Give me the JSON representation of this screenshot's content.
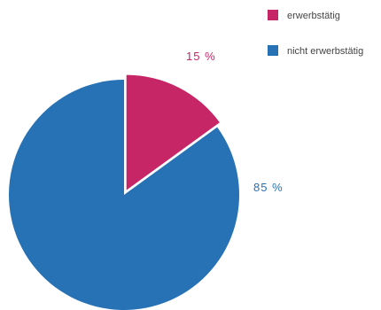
{
  "chart_data": {
    "type": "pie",
    "series": [
      {
        "name": "erwerbstätig",
        "value": 15,
        "label": "15 %",
        "color": "#c62566"
      },
      {
        "name": "nicht erwerbstätig",
        "value": 85,
        "label": "85 %",
        "color": "#2772b5"
      }
    ],
    "legend_position": "top-right",
    "exploded_slice": "erwerbstätig"
  }
}
